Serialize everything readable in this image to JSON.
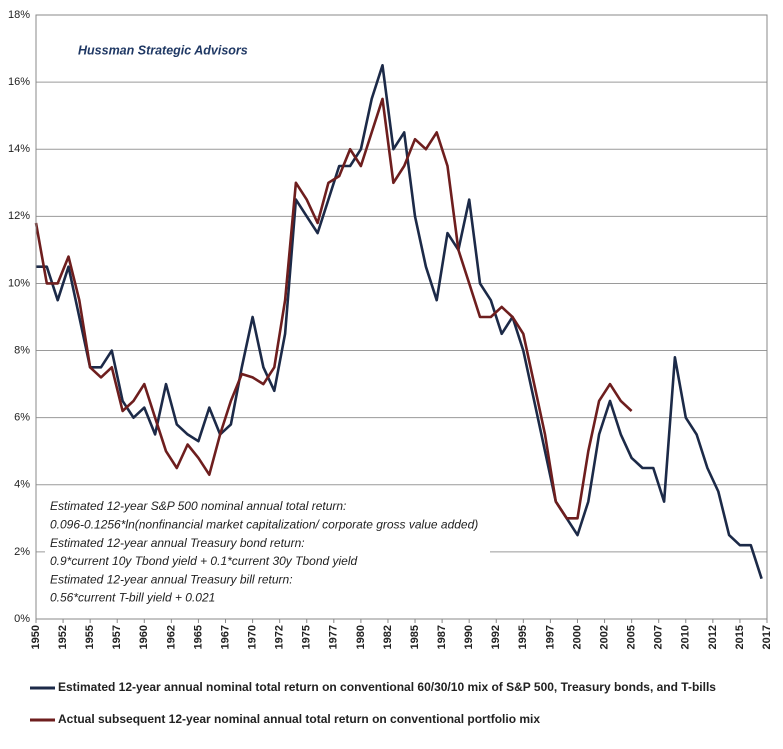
{
  "chart_data": {
    "type": "line",
    "watermark": "Hussman Strategic Advisors",
    "notes": [
      "Estimated 12-year S&P 500  nominal annual total return:",
      "0.096-0.1256*ln(nonfinancial market capitalization/ corporate gross value added)",
      "Estimated 12-year annual Treasury bond return:",
      "0.9*current 10y  Tbond yield + 0.1*current 30y  Tbond yield",
      "Estimated 12-year annual Treasury bill return:",
      "0.56*current  T-bill yield + 0.021"
    ],
    "x": [
      1950,
      1951,
      1952,
      1953,
      1954,
      1955,
      1956,
      1957,
      1958,
      1959,
      1960,
      1961,
      1962,
      1963,
      1964,
      1965,
      1966,
      1967,
      1968,
      1969,
      1970,
      1971,
      1972,
      1973,
      1974,
      1975,
      1976,
      1977,
      1978,
      1979,
      1980,
      1981,
      1982,
      1983,
      1984,
      1985,
      1986,
      1987,
      1988,
      1989,
      1990,
      1991,
      1992,
      1993,
      1994,
      1995,
      1996,
      1997,
      1998,
      1999,
      2000,
      2001,
      2002,
      2003,
      2004,
      2005,
      2006,
      2007,
      2008,
      2009,
      2010,
      2011,
      2012,
      2013,
      2014,
      2015,
      2016,
      2017
    ],
    "series": [
      {
        "name": "Estimated 12-year annual nominal total return on conventional 60/30/10 mix of S&P 500, Treasury bonds, and T-bills",
        "color": "#1c2a48",
        "values": [
          10.5,
          10.5,
          9.5,
          10.5,
          9,
          7.5,
          7.5,
          8,
          6.5,
          6,
          6.3,
          5.5,
          7,
          5.8,
          5.5,
          5.3,
          6.3,
          5.5,
          5.8,
          7.5,
          9,
          7.5,
          6.8,
          8.5,
          12.5,
          12,
          11.5,
          12.5,
          13.5,
          13.5,
          14,
          15.5,
          16.5,
          14,
          14.5,
          12,
          10.5,
          9.5,
          11.5,
          11,
          12.5,
          10,
          9.5,
          8.5,
          9,
          8,
          6.5,
          5,
          3.5,
          3,
          2.5,
          3.5,
          5.5,
          6.5,
          5.5,
          4.8,
          4.5,
          4.5,
          3.5,
          7.8,
          6,
          5.5,
          4.5,
          3.8,
          2.5,
          2.2,
          2.2,
          1.2
        ]
      },
      {
        "name": "Actual subsequent 12-year nominal annual total return on conventional portfolio mix",
        "color": "#6e1e1e",
        "values": [
          11.8,
          10,
          10,
          10.8,
          9.5,
          7.5,
          7.2,
          7.5,
          6.2,
          6.5,
          7,
          6,
          5,
          4.5,
          5.2,
          4.8,
          4.3,
          5.5,
          6.5,
          7.3,
          7.2,
          7,
          7.5,
          9.5,
          13,
          12.5,
          11.8,
          13,
          13.2,
          14,
          13.5,
          14.5,
          15.5,
          13,
          13.5,
          14.3,
          14,
          14.5,
          13.5,
          11,
          10,
          9,
          9,
          9.3,
          9,
          8.5,
          7,
          5.5,
          3.5,
          3,
          3,
          5,
          6.5,
          7,
          6.5,
          6.2,
          null,
          null,
          null,
          null,
          null,
          null,
          null,
          null,
          null,
          null,
          null,
          null
        ]
      }
    ],
    "xlim": [
      1950,
      2017.5
    ],
    "xticks": [
      {
        "value": 1950,
        "label": "1950"
      },
      {
        "value": 1952.5,
        "label": "1952"
      },
      {
        "value": 1955,
        "label": "1955"
      },
      {
        "value": 1957.5,
        "label": "1957"
      },
      {
        "value": 1960,
        "label": "1960"
      },
      {
        "value": 1962.5,
        "label": "1962"
      },
      {
        "value": 1965,
        "label": "1965"
      },
      {
        "value": 1967.5,
        "label": "1967"
      },
      {
        "value": 1970,
        "label": "1970"
      },
      {
        "value": 1972.5,
        "label": "1972"
      },
      {
        "value": 1975,
        "label": "1975"
      },
      {
        "value": 1977.5,
        "label": "1977"
      },
      {
        "value": 1980,
        "label": "1980"
      },
      {
        "value": 1982.5,
        "label": "1982"
      },
      {
        "value": 1985,
        "label": "1985"
      },
      {
        "value": 1987.5,
        "label": "1987"
      },
      {
        "value": 1990,
        "label": "1990"
      },
      {
        "value": 1992.5,
        "label": "1992"
      },
      {
        "value": 1995,
        "label": "1995"
      },
      {
        "value": 1997.5,
        "label": "1997"
      },
      {
        "value": 2000,
        "label": "2000"
      },
      {
        "value": 2002.5,
        "label": "2002"
      },
      {
        "value": 2005,
        "label": "2005"
      },
      {
        "value": 2007.5,
        "label": "2007"
      },
      {
        "value": 2010,
        "label": "2010"
      },
      {
        "value": 2012.5,
        "label": "2012"
      },
      {
        "value": 2015,
        "label": "2015"
      },
      {
        "value": 2017.5,
        "label": "2017"
      }
    ],
    "ylim": [
      0,
      18
    ],
    "yticks": [
      {
        "value": 0,
        "label": "0%"
      },
      {
        "value": 2,
        "label": "2%"
      },
      {
        "value": 4,
        "label": "4%"
      },
      {
        "value": 6,
        "label": "6%"
      },
      {
        "value": 8,
        "label": "8%"
      },
      {
        "value": 10,
        "label": "10%"
      },
      {
        "value": 12,
        "label": "12%"
      },
      {
        "value": 14,
        "label": "14%"
      },
      {
        "value": 16,
        "label": "16%"
      },
      {
        "value": 18,
        "label": "18%"
      }
    ],
    "grid": true
  }
}
